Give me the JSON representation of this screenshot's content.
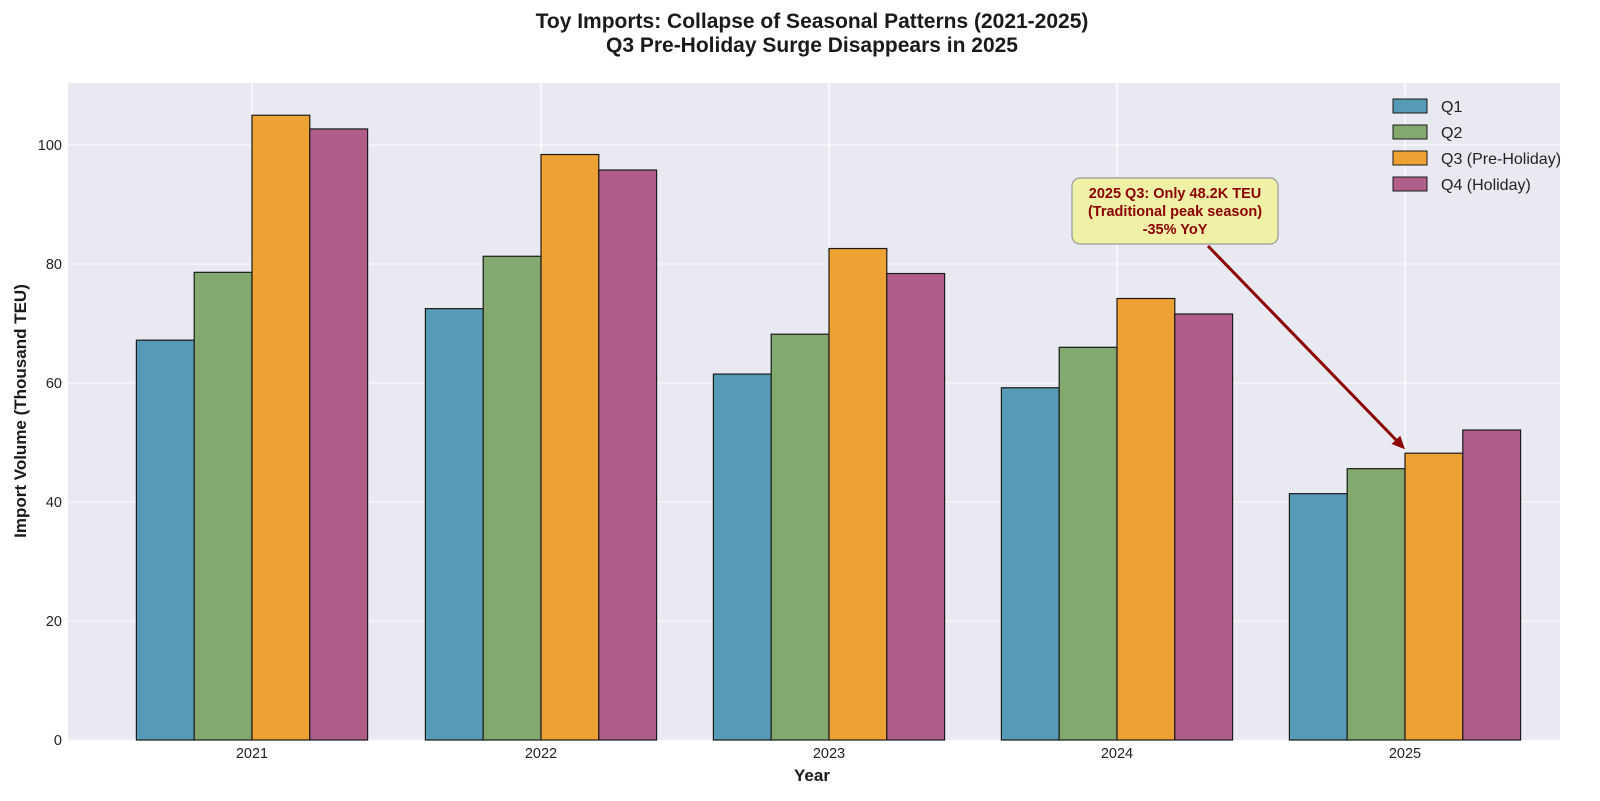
{
  "chart_data": {
    "type": "bar",
    "title_line1": "Toy Imports: Collapse of Seasonal Patterns (2021-2025)",
    "title_line2": "Q3 Pre-Holiday Surge Disappears in 2025",
    "xlabel": "Year",
    "ylabel": "Import Volume (Thousand TEU)",
    "categories": [
      "2021",
      "2022",
      "2023",
      "2024",
      "2025"
    ],
    "ylim": [
      0,
      110
    ],
    "yticks": [
      0,
      20,
      40,
      60,
      80,
      100
    ],
    "grid": true,
    "legend_position": "top-right",
    "series": [
      {
        "name": "Q1",
        "color": "#559bb8",
        "values": [
          67.2,
          72.5,
          61.5,
          59.2,
          41.4
        ]
      },
      {
        "name": "Q2",
        "color": "#84a96f",
        "values": [
          78.6,
          81.3,
          68.2,
          66.0,
          45.6
        ]
      },
      {
        "name": "Q3 (Pre-Holiday)",
        "color": "#eea233",
        "values": [
          105.0,
          98.4,
          82.6,
          74.2,
          48.2
        ]
      },
      {
        "name": "Q4 (Holiday)",
        "color": "#b05e89",
        "values": [
          102.7,
          95.8,
          78.4,
          71.6,
          52.1
        ]
      }
    ],
    "annotation": {
      "lines": [
        "2025 Q3: Only 48.2K TEU",
        "(Traditional peak season)",
        "-35% YoY"
      ],
      "target_category": "2025",
      "target_series": "Q3 (Pre-Holiday)",
      "text_color": "#8b0000",
      "box_color": "#f1f0a7"
    }
  }
}
